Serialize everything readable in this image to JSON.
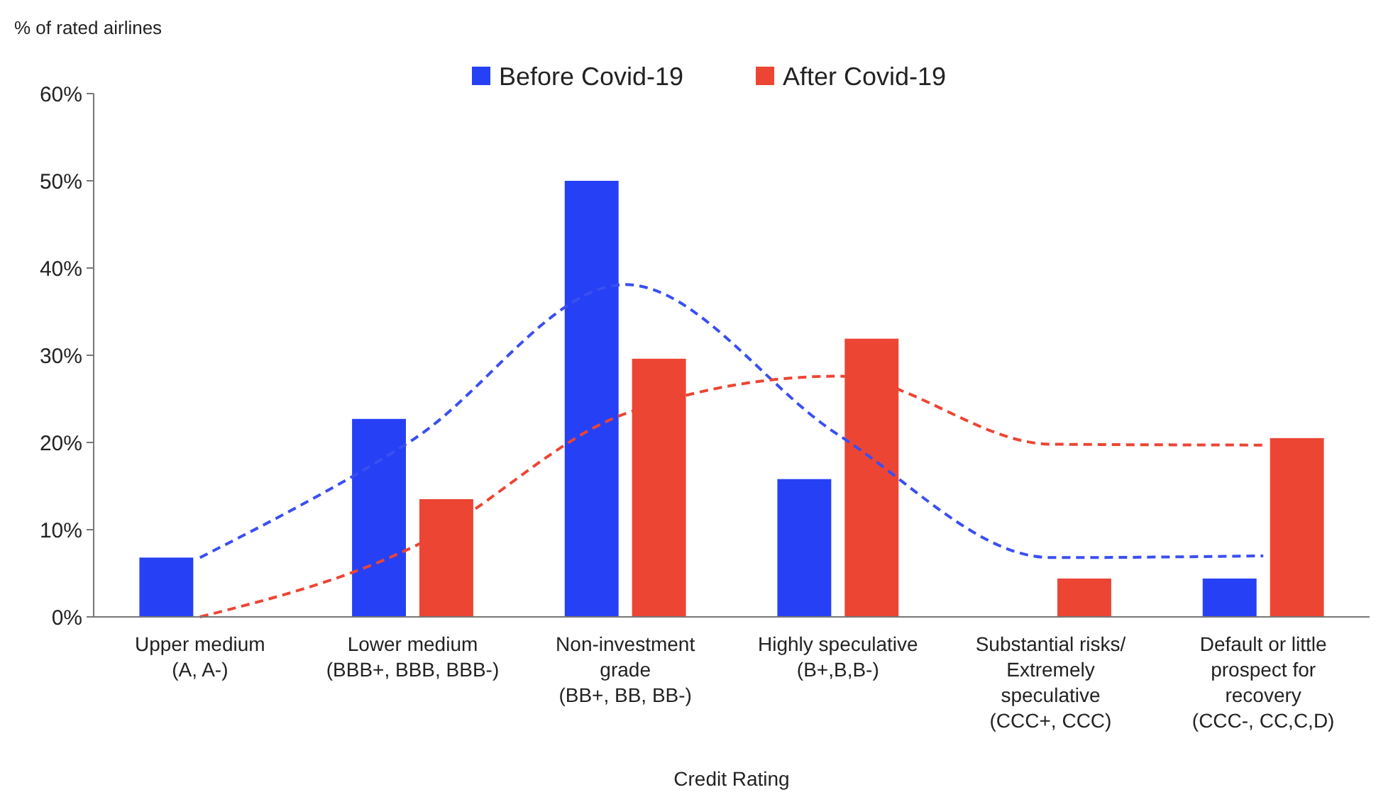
{
  "chart_data": {
    "type": "bar",
    "ylabel": "% of rated airlines",
    "xlabel": "Credit Rating",
    "categories": [
      "Upper medium (A, A-)",
      "Lower medium (BBB+, BBB, BBB-)",
      "Non-investment grade (BB+, BB, BB-)",
      "Highly speculative (B+,B,B-)",
      "Substantial risks/ Extremely speculative (CCC+, CCC)",
      "Default or little prospect for recovery (CCC-, CC,C,D)"
    ],
    "series": [
      {
        "name": "Before  Covid-19",
        "color": "#2641f5",
        "values": [
          6.8,
          22.7,
          50,
          15.8,
          0,
          4.4
        ]
      },
      {
        "name": "After Covid-19",
        "color": "#ec4534",
        "values": [
          0,
          13.5,
          29.6,
          31.9,
          4.4,
          20.5
        ]
      },
      {
        "type": "line",
        "color": "#3a4ff0",
        "line_style": "dashed",
        "marker": "none",
        "values": [
          6.8,
          20.3,
          38.1,
          20.9,
          6.8,
          7
        ]
      },
      {
        "type": "line",
        "color": "#ec4534",
        "line_style": "dashed",
        "marker": "none",
        "values": [
          0,
          8,
          23.3,
          27.6,
          19.8,
          19.7
        ]
      }
    ],
    "ylim": [
      0,
      60
    ],
    "yticks": [
      {
        "value": 0,
        "label": "0%"
      },
      {
        "value": 10,
        "label": "10%"
      },
      {
        "value": 20,
        "label": "20%"
      },
      {
        "value": 30,
        "label": "30%"
      },
      {
        "value": 40,
        "label": "40%"
      },
      {
        "value": 50,
        "label": "50%"
      },
      {
        "value": 60,
        "label": "60%"
      }
    ],
    "grid": false,
    "legend": "top"
  }
}
